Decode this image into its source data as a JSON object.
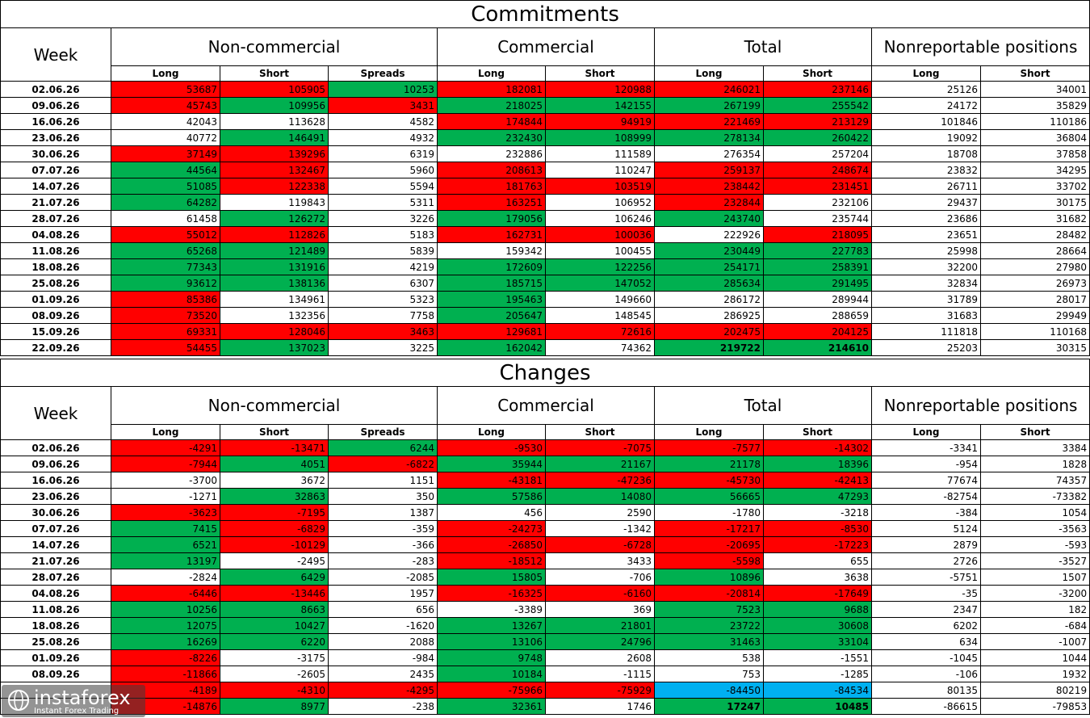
{
  "commitments": {
    "title": "Commitments",
    "week_header": "Week",
    "groups": [
      "Non-commercial",
      "Commercial",
      "Total",
      "Nonreportable positions"
    ],
    "subheaders": [
      "Long",
      "Short",
      "Spreads",
      "Long",
      "Short",
      "Long",
      "Short",
      "Long",
      "Short"
    ],
    "rows": [
      {
        "week": "02.06.26",
        "v": [
          "53687",
          "105905",
          "10253",
          "182081",
          "120988",
          "246021",
          "237146",
          "25126",
          "34001"
        ],
        "c": [
          "r",
          "r",
          "g",
          "r",
          "r",
          "r",
          "r",
          "",
          ""
        ]
      },
      {
        "week": "09.06.26",
        "v": [
          "45743",
          "109956",
          "3431",
          "218025",
          "142155",
          "267199",
          "255542",
          "24172",
          "35829"
        ],
        "c": [
          "r",
          "g",
          "r",
          "g",
          "g",
          "g",
          "g",
          "",
          ""
        ]
      },
      {
        "week": "16.06.26",
        "v": [
          "42043",
          "113628",
          "4582",
          "174844",
          "94919",
          "221469",
          "213129",
          "101846",
          "110186"
        ],
        "c": [
          "",
          "",
          "",
          "r",
          "r",
          "r",
          "r",
          "",
          ""
        ]
      },
      {
        "week": "23.06.26",
        "v": [
          "40772",
          "146491",
          "4932",
          "232430",
          "108999",
          "278134",
          "260422",
          "19092",
          "36804"
        ],
        "c": [
          "",
          "g",
          "",
          "g",
          "g",
          "g",
          "g",
          "",
          ""
        ]
      },
      {
        "week": "30.06.26",
        "v": [
          "37149",
          "139296",
          "6319",
          "232886",
          "111589",
          "276354",
          "257204",
          "18708",
          "37858"
        ],
        "c": [
          "r",
          "r",
          "",
          "",
          "",
          "",
          "",
          "",
          ""
        ]
      },
      {
        "week": "07.07.26",
        "v": [
          "44564",
          "132467",
          "5960",
          "208613",
          "110247",
          "259137",
          "248674",
          "23832",
          "34295"
        ],
        "c": [
          "g",
          "r",
          "",
          "r",
          "",
          "r",
          "r",
          "",
          ""
        ]
      },
      {
        "week": "14.07.26",
        "v": [
          "51085",
          "122338",
          "5594",
          "181763",
          "103519",
          "238442",
          "231451",
          "26711",
          "33702"
        ],
        "c": [
          "g",
          "r",
          "",
          "r",
          "r",
          "r",
          "r",
          "",
          ""
        ]
      },
      {
        "week": "21.07.26",
        "v": [
          "64282",
          "119843",
          "5311",
          "163251",
          "106952",
          "232844",
          "232106",
          "29437",
          "30175"
        ],
        "c": [
          "g",
          "",
          "",
          "r",
          "",
          "r",
          "",
          "",
          ""
        ]
      },
      {
        "week": "28.07.26",
        "v": [
          "61458",
          "126272",
          "3226",
          "179056",
          "106246",
          "243740",
          "235744",
          "23686",
          "31682"
        ],
        "c": [
          "",
          "g",
          "",
          "g",
          "",
          "g",
          "",
          "",
          ""
        ]
      },
      {
        "week": "04.08.26",
        "v": [
          "55012",
          "112826",
          "5183",
          "162731",
          "100036",
          "222926",
          "218095",
          "23651",
          "28482"
        ],
        "c": [
          "r",
          "r",
          "",
          "r",
          "r",
          "",
          "r",
          "",
          ""
        ]
      },
      {
        "week": "11.08.26",
        "v": [
          "65268",
          "121489",
          "5839",
          "159342",
          "100455",
          "230449",
          "227783",
          "25998",
          "28664"
        ],
        "c": [
          "g",
          "g",
          "",
          "",
          "",
          "g",
          "g",
          "",
          ""
        ]
      },
      {
        "week": "18.08.26",
        "v": [
          "77343",
          "131916",
          "4219",
          "172609",
          "122256",
          "254171",
          "258391",
          "32200",
          "27980"
        ],
        "c": [
          "g",
          "g",
          "",
          "g",
          "g",
          "g",
          "g",
          "",
          ""
        ]
      },
      {
        "week": "25.08.26",
        "v": [
          "93612",
          "138136",
          "6307",
          "185715",
          "147052",
          "285634",
          "291495",
          "32834",
          "26973"
        ],
        "c": [
          "g",
          "g",
          "",
          "g",
          "g",
          "g",
          "g",
          "",
          ""
        ]
      },
      {
        "week": "01.09.26",
        "v": [
          "85386",
          "134961",
          "5323",
          "195463",
          "149660",
          "286172",
          "289944",
          "31789",
          "28017"
        ],
        "c": [
          "r",
          "",
          "",
          "g",
          "",
          "",
          "",
          "",
          ""
        ]
      },
      {
        "week": "08.09.26",
        "v": [
          "73520",
          "132356",
          "7758",
          "205647",
          "148545",
          "286925",
          "288659",
          "31683",
          "29949"
        ],
        "c": [
          "r",
          "",
          "",
          "g",
          "",
          "",
          "",
          "",
          ""
        ]
      },
      {
        "week": "15.09.26",
        "v": [
          "69331",
          "128046",
          "3463",
          "129681",
          "72616",
          "202475",
          "204125",
          "111818",
          "110168"
        ],
        "c": [
          "r",
          "r",
          "r",
          "r",
          "r",
          "r",
          "r",
          "",
          ""
        ]
      },
      {
        "week": "22.09.26",
        "v": [
          "54455",
          "137023",
          "3225",
          "162042",
          "74362",
          "219722",
          "214610",
          "25203",
          "30315"
        ],
        "c": [
          "r",
          "g",
          "",
          "g",
          "",
          "g",
          "g",
          "",
          ""
        ],
        "bold_total": true
      }
    ]
  },
  "changes": {
    "title": "Changes",
    "week_header": "Week",
    "groups": [
      "Non-commercial",
      "Commercial",
      "Total",
      "Nonreportable positions"
    ],
    "subheaders": [
      "Long",
      "Short",
      "Spreads",
      "Long",
      "Short",
      "Long",
      "Short",
      "Long",
      "Short"
    ],
    "rows": [
      {
        "week": "02.06.26",
        "v": [
          "-4291",
          "-13471",
          "6244",
          "-9530",
          "-7075",
          "-7577",
          "-14302",
          "-3341",
          "3384"
        ],
        "c": [
          "r",
          "r",
          "g",
          "r",
          "r",
          "r",
          "r",
          "",
          ""
        ]
      },
      {
        "week": "09.06.26",
        "v": [
          "-7944",
          "4051",
          "-6822",
          "35944",
          "21167",
          "21178",
          "18396",
          "-954",
          "1828"
        ],
        "c": [
          "r",
          "g",
          "r",
          "g",
          "g",
          "g",
          "g",
          "",
          ""
        ]
      },
      {
        "week": "16.06.26",
        "v": [
          "-3700",
          "3672",
          "1151",
          "-43181",
          "-47236",
          "-45730",
          "-42413",
          "77674",
          "74357"
        ],
        "c": [
          "",
          "",
          "",
          "r",
          "r",
          "r",
          "r",
          "",
          ""
        ]
      },
      {
        "week": "23.06.26",
        "v": [
          "-1271",
          "32863",
          "350",
          "57586",
          "14080",
          "56665",
          "47293",
          "-82754",
          "-73382"
        ],
        "c": [
          "",
          "g",
          "",
          "g",
          "g",
          "g",
          "g",
          "",
          ""
        ]
      },
      {
        "week": "30.06.26",
        "v": [
          "-3623",
          "-7195",
          "1387",
          "456",
          "2590",
          "-1780",
          "-3218",
          "-384",
          "1054"
        ],
        "c": [
          "r",
          "r",
          "",
          "",
          "",
          "",
          "",
          "",
          ""
        ]
      },
      {
        "week": "07.07.26",
        "v": [
          "7415",
          "-6829",
          "-359",
          "-24273",
          "-1342",
          "-17217",
          "-8530",
          "5124",
          "-3563"
        ],
        "c": [
          "g",
          "r",
          "",
          "r",
          "",
          "r",
          "r",
          "",
          ""
        ]
      },
      {
        "week": "14.07.26",
        "v": [
          "6521",
          "-10129",
          "-366",
          "-26850",
          "-6728",
          "-20695",
          "-17223",
          "2879",
          "-593"
        ],
        "c": [
          "g",
          "r",
          "",
          "r",
          "r",
          "r",
          "r",
          "",
          ""
        ]
      },
      {
        "week": "21.07.26",
        "v": [
          "13197",
          "-2495",
          "-283",
          "-18512",
          "3433",
          "-5598",
          "655",
          "2726",
          "-3527"
        ],
        "c": [
          "g",
          "",
          "",
          "r",
          "",
          "r",
          "",
          "",
          ""
        ]
      },
      {
        "week": "28.07.26",
        "v": [
          "-2824",
          "6429",
          "-2085",
          "15805",
          "-706",
          "10896",
          "3638",
          "-5751",
          "1507"
        ],
        "c": [
          "",
          "g",
          "",
          "g",
          "",
          "g",
          "",
          "",
          ""
        ]
      },
      {
        "week": "04.08.26",
        "v": [
          "-6446",
          "-13446",
          "1957",
          "-16325",
          "-6160",
          "-20814",
          "-17649",
          "-35",
          "-3200"
        ],
        "c": [
          "r",
          "r",
          "",
          "r",
          "r",
          "r",
          "r",
          "",
          ""
        ]
      },
      {
        "week": "11.08.26",
        "v": [
          "10256",
          "8663",
          "656",
          "-3389",
          "369",
          "7523",
          "9688",
          "2347",
          "182"
        ],
        "c": [
          "g",
          "g",
          "",
          "",
          "",
          "g",
          "g",
          "",
          ""
        ]
      },
      {
        "week": "18.08.26",
        "v": [
          "12075",
          "10427",
          "-1620",
          "13267",
          "21801",
          "23722",
          "30608",
          "6202",
          "-684"
        ],
        "c": [
          "g",
          "g",
          "",
          "g",
          "g",
          "g",
          "g",
          "",
          ""
        ]
      },
      {
        "week": "25.08.26",
        "v": [
          "16269",
          "6220",
          "2088",
          "13106",
          "24796",
          "31463",
          "33104",
          "634",
          "-1007"
        ],
        "c": [
          "g",
          "g",
          "",
          "g",
          "g",
          "g",
          "g",
          "",
          ""
        ]
      },
      {
        "week": "01.09.26",
        "v": [
          "-8226",
          "-3175",
          "-984",
          "9748",
          "2608",
          "538",
          "-1551",
          "-1045",
          "1044"
        ],
        "c": [
          "r",
          "",
          "",
          "g",
          "",
          "",
          "",
          "",
          ""
        ]
      },
      {
        "week": "08.09.26",
        "v": [
          "-11866",
          "-2605",
          "2435",
          "10184",
          "-1115",
          "753",
          "-1285",
          "-106",
          "1932"
        ],
        "c": [
          "r",
          "",
          "",
          "g",
          "",
          "",
          "",
          "",
          ""
        ]
      },
      {
        "week": "",
        "v": [
          "-4189",
          "-4310",
          "-4295",
          "-75966",
          "-75929",
          "-84450",
          "-84534",
          "80135",
          "80219"
        ],
        "c": [
          "r",
          "r",
          "r",
          "r",
          "r",
          "b",
          "b",
          "",
          ""
        ]
      },
      {
        "week": "",
        "v": [
          "-14876",
          "8977",
          "-238",
          "32361",
          "1746",
          "17247",
          "10485",
          "-86615",
          "-79853"
        ],
        "c": [
          "r",
          "g",
          "",
          "g",
          "",
          "g",
          "g",
          "",
          ""
        ],
        "bold_total": true
      }
    ]
  },
  "logo": {
    "name": "instaforex",
    "tagline": "Instant Forex Trading"
  },
  "colors": {
    "green": "#00b050",
    "red": "#ff0000",
    "blue": "#00b0f0"
  }
}
